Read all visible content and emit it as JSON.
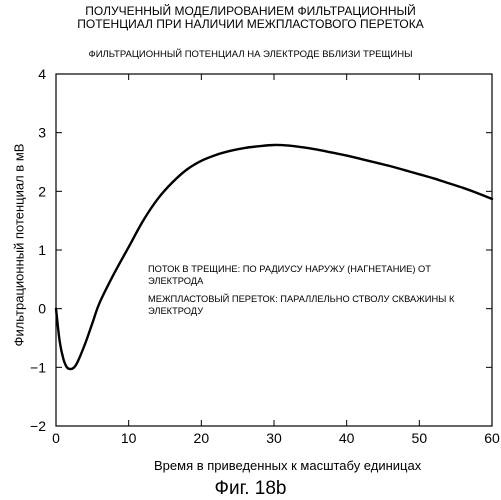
{
  "chart_data": {
    "type": "line",
    "title_lines": [
      "ПОЛУЧЕННЫЙ МОДЕЛИРОВАНИЕМ ФИЛЬТРАЦИОННЫЙ",
      "ПОТЕНЦИАЛ ПРИ НАЛИЧИИ МЕЖПЛАСТОВОГО ПЕРЕТОКА"
    ],
    "subtitle": "ФИЛЬТРАЦИОННЫЙ ПОТЕНЦИАЛ НА ЭЛЕКТРОДЕ ВБЛИЗИ ТРЕЩИНЫ",
    "xlabel": "Время в приведенных к масштабу единицах",
    "ylabel": "Фильтрационный потенциал в мВ",
    "xlim": [
      0,
      60
    ],
    "ylim": [
      -2,
      4
    ],
    "xticks": [
      0,
      10,
      20,
      30,
      40,
      50,
      60
    ],
    "yticks": [
      -2,
      -1,
      0,
      1,
      2,
      3,
      4
    ],
    "grid": false,
    "annotation_lines": [
      "ПОТОК В ТРЕЩИНЕ: ПО РАДИУСУ НАРУЖУ (НАГНЕТАНИЕ) ОТ",
      "ЭЛЕКТРОДА",
      "МЕЖПЛАСТОВЫЙ ПЕРЕТОК: ПАРАЛЛЕЛЬНО СТВОЛУ СКВАЖИНЫ К",
      "ЭЛЕКТРОДУ"
    ],
    "series": [
      {
        "x": [
          0,
          0.5,
          1,
          1.5,
          2,
          2.5,
          3,
          4,
          5,
          6,
          8,
          10,
          12,
          14,
          16,
          18,
          20,
          22,
          24,
          26,
          28,
          30,
          32,
          34,
          36,
          38,
          40,
          42,
          44,
          46,
          48,
          50,
          52,
          54,
          56,
          58,
          60
        ],
        "y": [
          0.0,
          -0.55,
          -0.85,
          -1.0,
          -1.03,
          -1.0,
          -0.9,
          -0.6,
          -0.25,
          0.1,
          0.6,
          1.05,
          1.5,
          1.87,
          2.15,
          2.37,
          2.52,
          2.62,
          2.69,
          2.74,
          2.77,
          2.79,
          2.78,
          2.75,
          2.71,
          2.66,
          2.61,
          2.55,
          2.49,
          2.43,
          2.36,
          2.29,
          2.22,
          2.14,
          2.06,
          1.97,
          1.87
        ]
      }
    ]
  },
  "caption": "Фиг. 18b"
}
